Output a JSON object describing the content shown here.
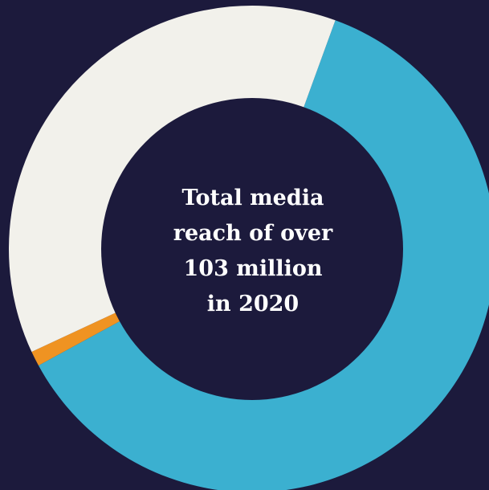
{
  "chart_data": {
    "type": "pie",
    "donut": true,
    "center_label": [
      "Total media",
      "reach of over",
      "103 million",
      "in 2020"
    ],
    "slices": [
      {
        "value": 61.5,
        "color": "#3bb0d0"
      },
      {
        "value": 1.0,
        "color": "#ef9322"
      },
      {
        "value": 37.5,
        "color": "#f2f1eb"
      }
    ],
    "start_angle_deg": 20,
    "direction": "clockwise",
    "background_color": "#1c1a3c",
    "hole_color": "#1c1a3c"
  }
}
